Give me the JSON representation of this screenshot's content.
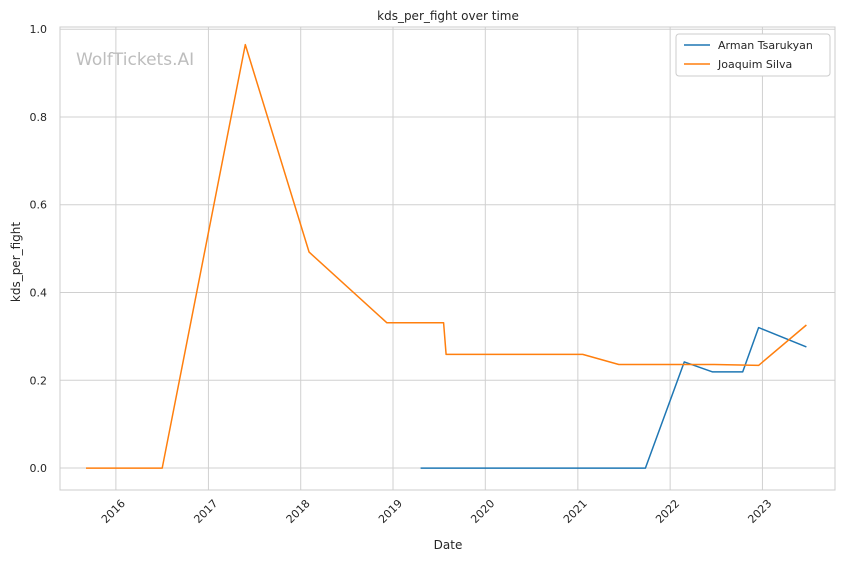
{
  "watermark": "WolfTickets.AI",
  "chart_data": {
    "type": "line",
    "title": "kds_per_fight over time",
    "xlabel": "Date",
    "ylabel": "kds_per_fight",
    "x_ticks": [
      "2016",
      "2017",
      "2018",
      "2019",
      "2020",
      "2021",
      "2022",
      "2023"
    ],
    "y_ticks": [
      "0.0",
      "0.2",
      "0.4",
      "0.6",
      "0.8",
      "1.0"
    ],
    "xlim": [
      "2015-05-25",
      "2023-10-15"
    ],
    "ylim": [
      -0.05,
      1.005
    ],
    "grid": true,
    "legend_position": "top-right",
    "series": [
      {
        "name": "Arman Tsarukyan",
        "color": "#1f77b4",
        "points": [
          {
            "x": "2019-04-20",
            "y": 0.0
          },
          {
            "x": "2021-09-25",
            "y": 0.0
          },
          {
            "x": "2022-02-26",
            "y": 0.242
          },
          {
            "x": "2022-06-18",
            "y": 0.219
          },
          {
            "x": "2022-10-15",
            "y": 0.219
          },
          {
            "x": "2022-12-17",
            "y": 0.32
          },
          {
            "x": "2023-06-24",
            "y": 0.276
          }
        ]
      },
      {
        "name": "Joaquim Silva",
        "color": "#ff7f0e",
        "points": [
          {
            "x": "2015-09-05",
            "y": 0.0
          },
          {
            "x": "2016-07-02",
            "y": 0.0
          },
          {
            "x": "2017-05-27",
            "y": 0.965
          },
          {
            "x": "2018-02-03",
            "y": 0.492
          },
          {
            "x": "2018-12-08",
            "y": 0.331
          },
          {
            "x": "2019-07-20",
            "y": 0.331
          },
          {
            "x": "2019-07-30",
            "y": 0.259
          },
          {
            "x": "2021-01-20",
            "y": 0.259
          },
          {
            "x": "2021-06-12",
            "y": 0.236
          },
          {
            "x": "2022-06-25",
            "y": 0.236
          },
          {
            "x": "2022-12-17",
            "y": 0.234
          },
          {
            "x": "2023-06-24",
            "y": 0.326
          }
        ]
      }
    ]
  }
}
